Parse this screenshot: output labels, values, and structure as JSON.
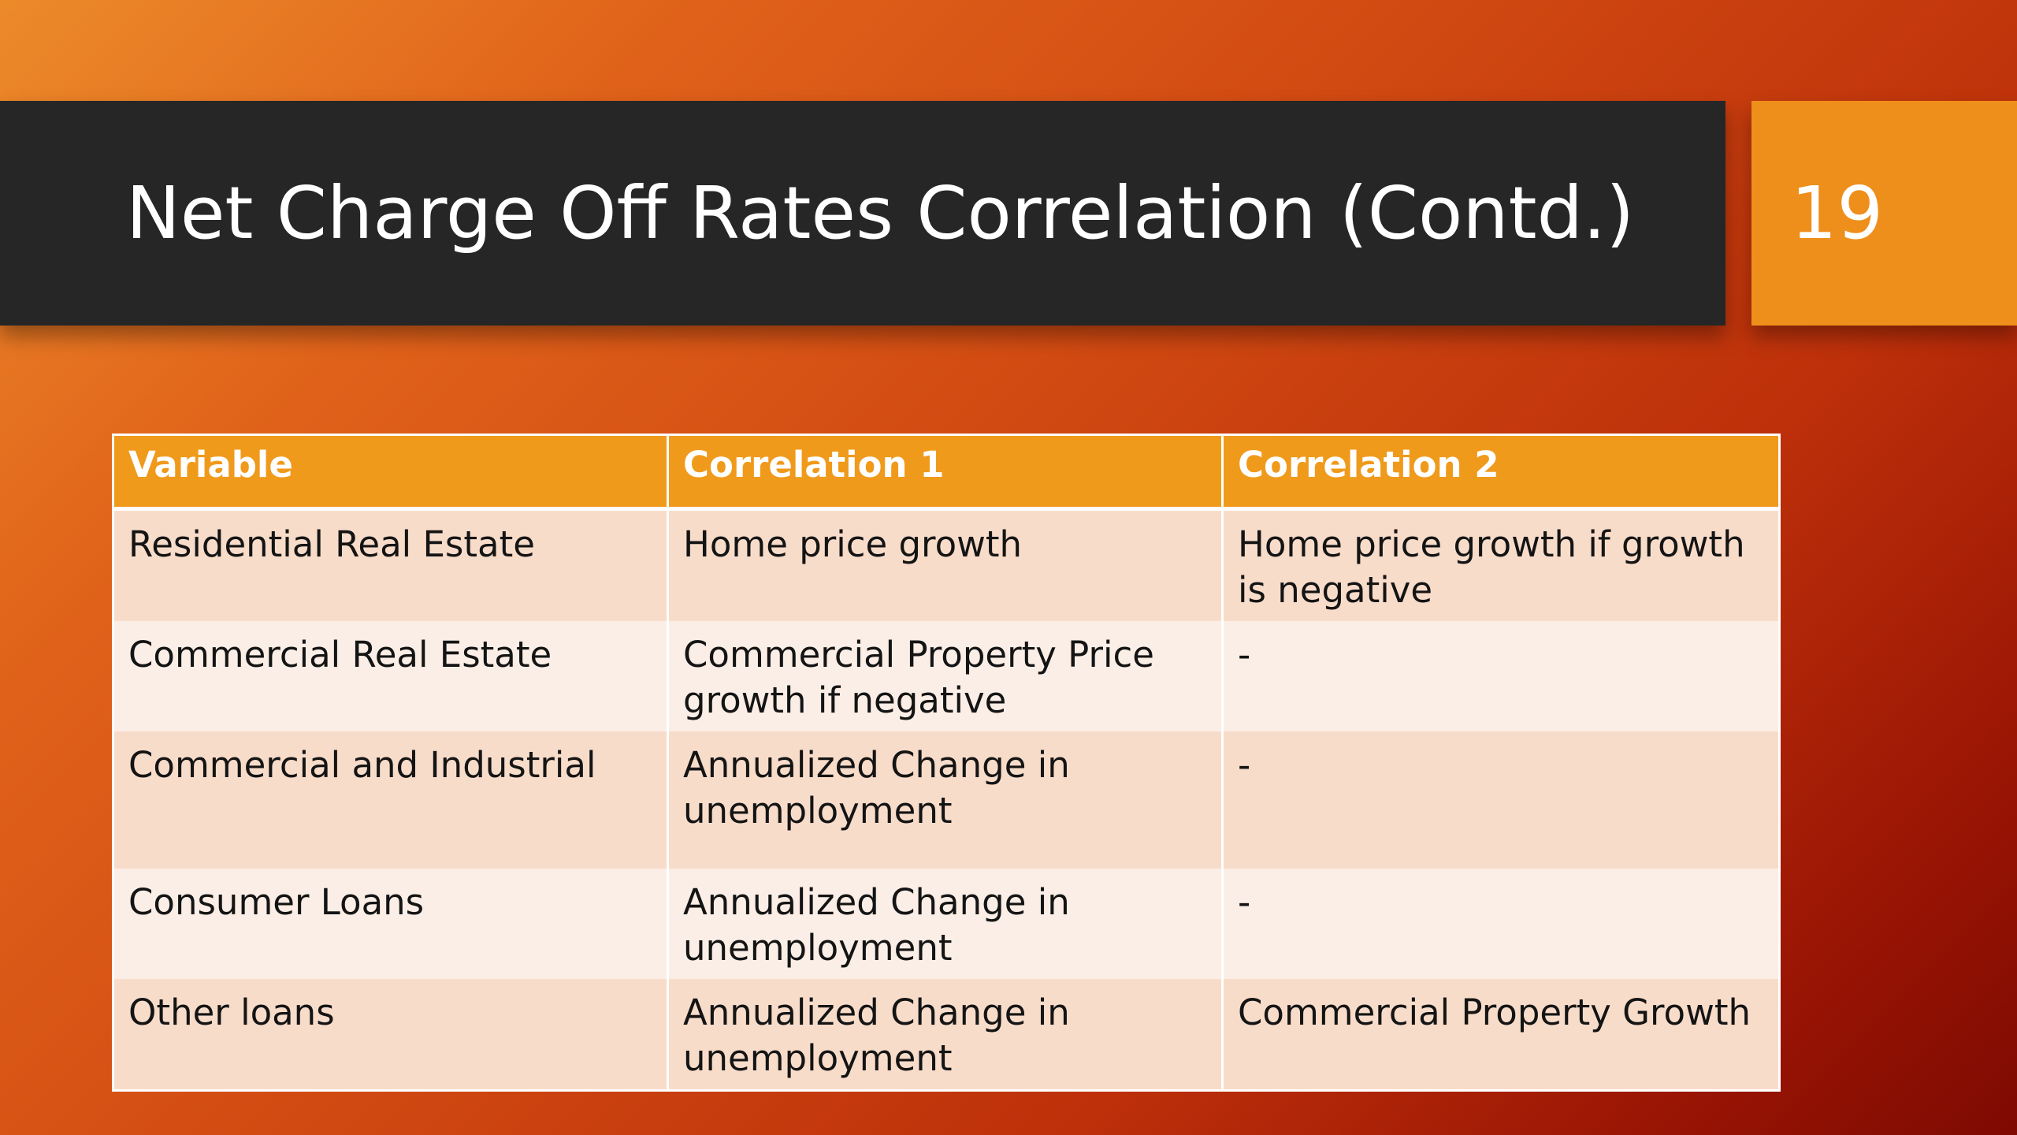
{
  "slide": {
    "title": "Net Charge Off Rates Correlation (Contd.)",
    "page_number": "19"
  },
  "table": {
    "headers": [
      "Variable",
      "Correlation 1",
      "Correlation 2"
    ],
    "rows": [
      [
        "Residential Real Estate",
        "Home price growth",
        "Home price growth if growth is negative"
      ],
      [
        "Commercial Real Estate",
        "Commercial Property Price growth if negative",
        "-"
      ],
      [
        "Commercial and Industrial",
        "Annualized Change in unemployment",
        "-"
      ],
      [
        "Consumer Loans",
        "Annualized Change in unemployment",
        "-"
      ],
      [
        "Other loans",
        "Annualized Change in unemployment",
        "Commercial Property Growth"
      ]
    ]
  },
  "colors": {
    "title_bar": "#262626",
    "accent": "#ee8f1c",
    "header_fill": "#f09a1c",
    "row_odd": "#f8dcca",
    "row_even": "#fbeee6"
  }
}
